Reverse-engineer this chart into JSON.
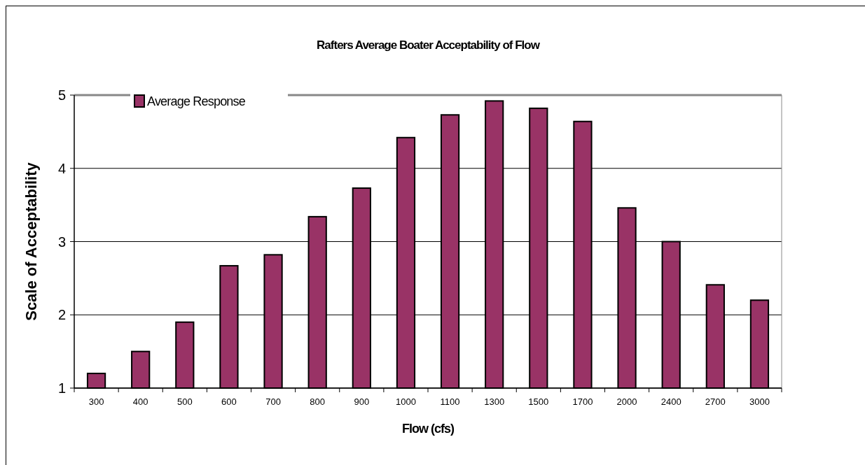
{
  "chart_data": {
    "type": "bar",
    "title": "Rafters Average Boater Acceptability of Flow",
    "xlabel": "Flow (cfs)",
    "ylabel": "Scale of Acceptability",
    "categories": [
      "300",
      "400",
      "500",
      "600",
      "700",
      "800",
      "900",
      "1000",
      "1100",
      "1300",
      "1500",
      "1700",
      "2000",
      "2400",
      "2700",
      "3000"
    ],
    "series": [
      {
        "name": "Average Response",
        "color": "#993366",
        "values": [
          1.2,
          1.5,
          1.9,
          2.67,
          2.82,
          3.34,
          3.73,
          4.42,
          4.73,
          4.92,
          4.82,
          4.64,
          3.46,
          3.0,
          2.41,
          2.2
        ]
      }
    ],
    "ylim": [
      1,
      5
    ],
    "yticks": [
      1,
      2,
      3,
      4,
      5
    ],
    "grid": "y",
    "legend": "top left"
  }
}
